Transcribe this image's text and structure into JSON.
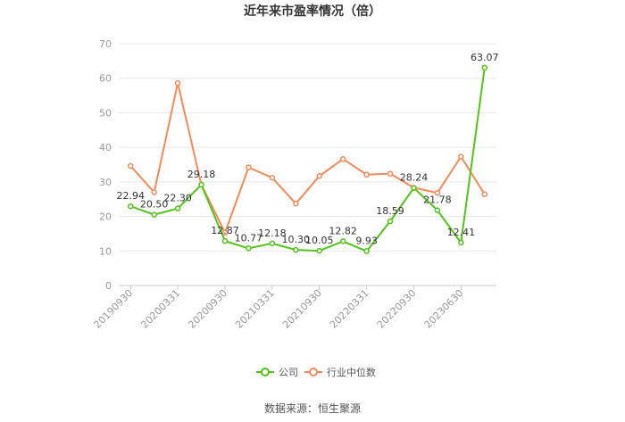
{
  "chart_data": {
    "type": "line",
    "title": "近年来市盈率情况（倍）",
    "xlabel": "",
    "ylabel": "",
    "ylim": [
      0,
      70
    ],
    "yticks": [
      0,
      10,
      20,
      30,
      40,
      50,
      60,
      70
    ],
    "grid": true,
    "legend_position": "bottom",
    "x_tick_labels": [
      "20190930",
      "20200331",
      "20200930",
      "20210331",
      "20210930",
      "20220331",
      "20220930",
      "20230630"
    ],
    "x_tick_index": [
      0,
      2,
      4,
      6,
      8,
      10,
      12,
      14
    ],
    "series": [
      {
        "name": "公司",
        "color": "#52c41a",
        "values": [
          22.94,
          20.5,
          22.3,
          29.18,
          12.87,
          10.77,
          12.18,
          10.3,
          10.05,
          12.82,
          9.93,
          18.59,
          28.24,
          21.78,
          12.41,
          63.07
        ],
        "labels": [
          "22.94",
          "20.50",
          "22.30",
          "29.18",
          "12.87",
          "10.77",
          "12.18",
          "10.30",
          "10.05",
          "12.82",
          "9.93",
          "18.59",
          "28.24",
          "21.78",
          "12.41",
          "63.07"
        ]
      },
      {
        "name": "行业中位数",
        "color": "#f58a5a",
        "values": [
          34.6,
          27.0,
          58.6,
          29.2,
          15.3,
          34.2,
          31.2,
          23.7,
          31.7,
          36.6,
          32.1,
          32.4,
          28.3,
          26.8,
          37.3,
          26.4
        ]
      }
    ]
  },
  "source_text": "数据来源：恒生聚源"
}
